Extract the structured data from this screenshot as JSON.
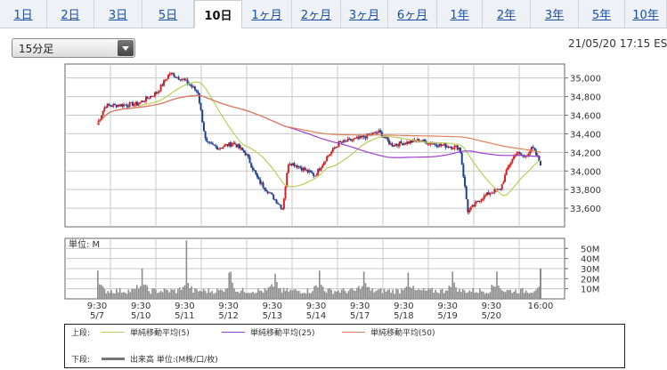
{
  "tabs": [
    {
      "label": "1日",
      "active": false
    },
    {
      "label": "2日",
      "active": false
    },
    {
      "label": "3日",
      "active": false
    },
    {
      "label": "5日",
      "active": false
    },
    {
      "label": "10日",
      "active": true
    },
    {
      "label": "1ヶ月",
      "active": false
    },
    {
      "label": "2ヶ月",
      "active": false
    },
    {
      "label": "3ヶ月",
      "active": false
    },
    {
      "label": "6ヶ月",
      "active": false
    },
    {
      "label": "1年",
      "active": false
    },
    {
      "label": "2年",
      "active": false
    },
    {
      "label": "3年",
      "active": false
    },
    {
      "label": "5年",
      "active": false
    },
    {
      "label": "10年",
      "active": false
    }
  ],
  "interval_select": {
    "value": "15分足"
  },
  "timestamp": "21/05/20 17:15 ES",
  "colors": {
    "up": "#d62020",
    "down": "#1f3f8f",
    "ma5": "#b9cf5a",
    "ma25": "#9b3fcf",
    "ma50": "#e0805a",
    "volume": "#8c8c8c",
    "grid": "#c8c8c8"
  },
  "chart_data": [
    {
      "type": "line",
      "ylim": [
        33400,
        35150
      ],
      "yticks": [
        "33,600",
        "33,800",
        "34,000",
        "34,200",
        "34,400",
        "34,600",
        "34,800",
        "35,000"
      ],
      "ytick_values": [
        33600,
        33800,
        34000,
        34200,
        34400,
        34600,
        34800,
        35000
      ],
      "xtick_top": [
        "9:30",
        "9:30",
        "9:30",
        "9:30",
        "9:30",
        "9:30",
        "9:30",
        "9:30",
        "9:30",
        "9:30",
        "16:00"
      ],
      "xtick_bottom": [
        "5/7",
        "5/10",
        "5/11",
        "5/12",
        "5/13",
        "5/14",
        "5/17",
        "5/18",
        "5/19",
        "5/20",
        ""
      ],
      "price_keyframes": [
        [
          0,
          34500
        ],
        [
          0.2,
          34700
        ],
        [
          1,
          34720
        ],
        [
          1.5,
          34850
        ],
        [
          1.8,
          35050
        ],
        [
          2.15,
          34980
        ],
        [
          2.5,
          34850
        ],
        [
          2.7,
          34300
        ],
        [
          3,
          34250
        ],
        [
          3.4,
          34300
        ],
        [
          3.7,
          34180
        ],
        [
          4,
          33900
        ],
        [
          4.6,
          33600
        ],
        [
          4.75,
          34100
        ],
        [
          5,
          34050
        ],
        [
          5.4,
          33950
        ],
        [
          5.7,
          34150
        ],
        [
          6,
          34300
        ],
        [
          6.5,
          34350
        ],
        [
          7,
          34420
        ],
        [
          7.3,
          34280
        ],
        [
          8,
          34330
        ],
        [
          8.5,
          34280
        ],
        [
          9,
          34250
        ],
        [
          9.2,
          33560
        ],
        [
          9.5,
          33700
        ],
        [
          9.8,
          33780
        ],
        [
          10,
          33800
        ],
        [
          10.2,
          34050
        ],
        [
          10.4,
          34200
        ],
        [
          10.6,
          34150
        ],
        [
          10.8,
          34250
        ],
        [
          11,
          34080
        ]
      ],
      "series": [
        {
          "name": "単純移動平均(5)",
          "key": "ma5",
          "period": 4
        },
        {
          "name": "単純移動平均(25)",
          "key": "ma25",
          "period": 18
        },
        {
          "name": "単純移動平均(50)",
          "key": "ma50",
          "period": 36
        }
      ]
    },
    {
      "type": "bar",
      "unit_label": "単位: M",
      "ylim": [
        0,
        60
      ],
      "yticks": [
        "10M",
        "20M",
        "30M",
        "40M",
        "50M"
      ],
      "ytick_values": [
        10,
        20,
        30,
        40,
        50
      ],
      "session_open_volumes": [
        28,
        30,
        58,
        27,
        25,
        28,
        27,
        26,
        27,
        27,
        30
      ],
      "base_volume": 5
    }
  ],
  "legend": {
    "upper_label": "上段:",
    "lower_label": "下段:",
    "items": [
      {
        "label": "単純移動平均(5)",
        "color": "#b9cf5a"
      },
      {
        "label": "単純移動平均(25)",
        "color": "#9b3fcf"
      },
      {
        "label": "単純移動平均(50)",
        "color": "#e0805a"
      }
    ],
    "volume_label": "出来高 単位:(M株/口/枚)"
  }
}
